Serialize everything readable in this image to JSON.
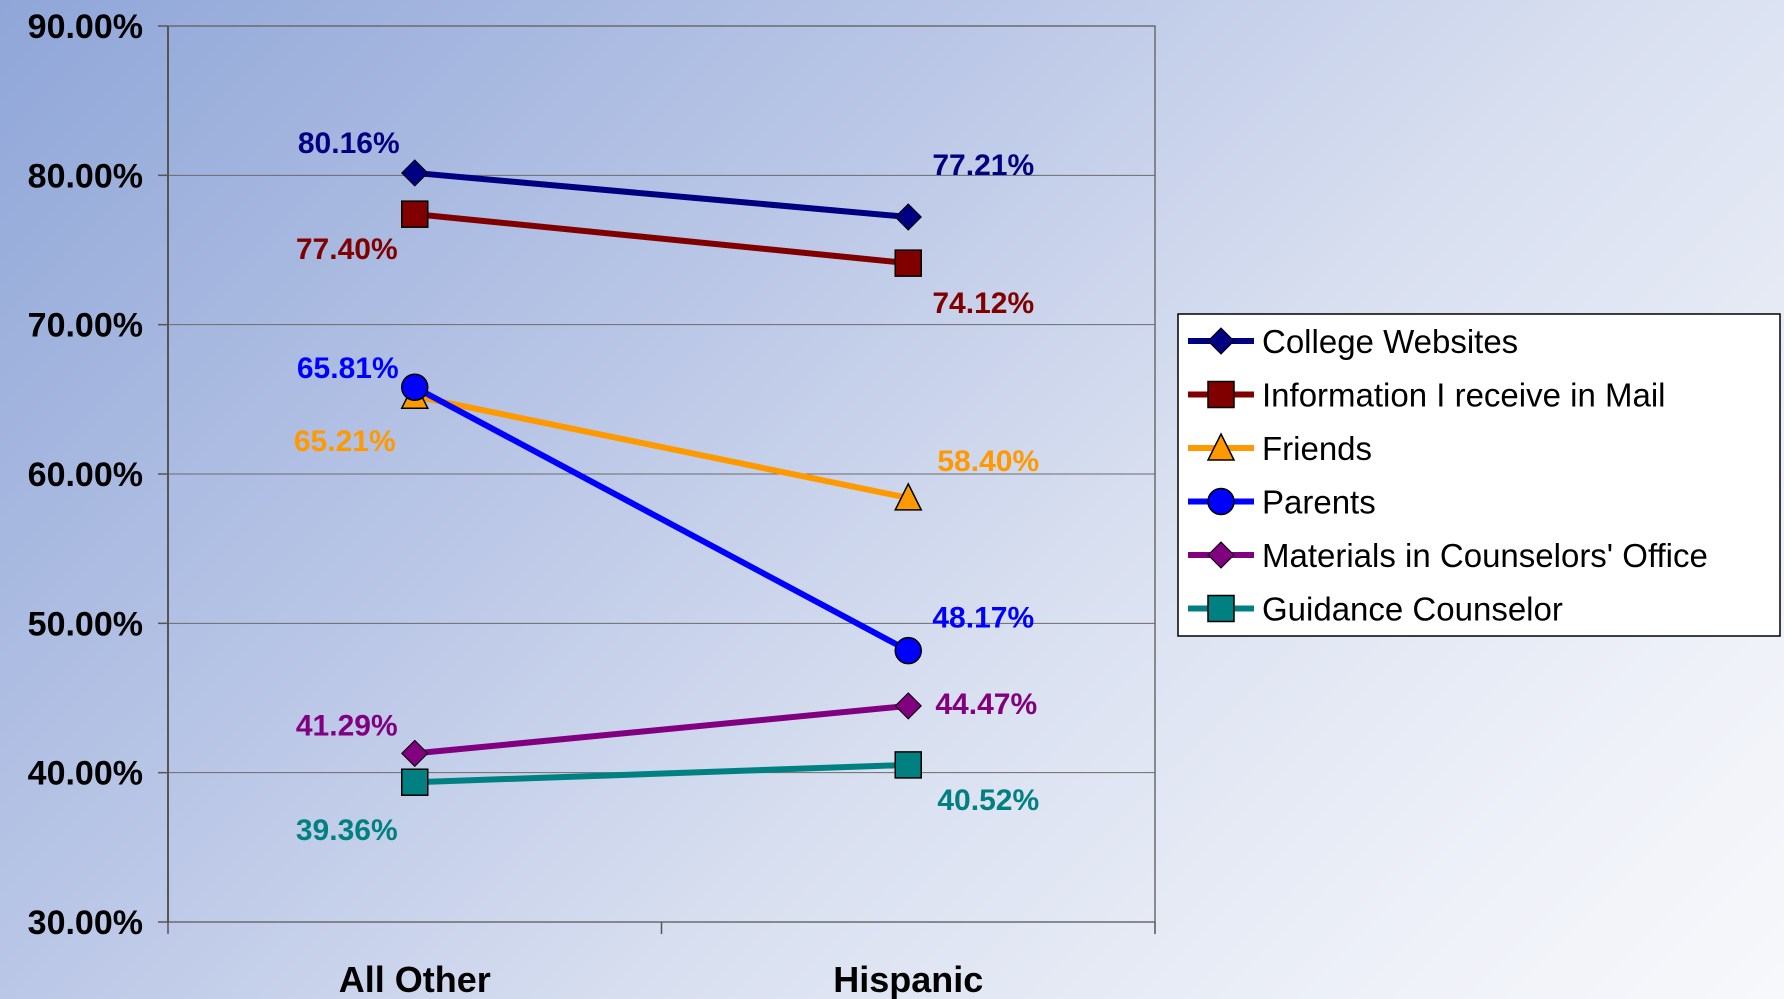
{
  "chart_data": {
    "type": "line",
    "categories": [
      "All Other",
      "Hispanic"
    ],
    "ylim": [
      0.3,
      0.9
    ],
    "yticks": [
      "30.00%",
      "40.00%",
      "50.00%",
      "60.00%",
      "70.00%",
      "80.00%",
      "90.00%"
    ],
    "grid": true,
    "legend_position": "right",
    "series": [
      {
        "name": "College Websites",
        "values": [
          0.8016,
          0.7721
        ],
        "labels": [
          "80.16%",
          "77.21%"
        ],
        "color": "#000080",
        "marker": "diamond"
      },
      {
        "name": "Information I receive in Mail",
        "values": [
          0.774,
          0.7412
        ],
        "labels": [
          "77.40%",
          "74.12%"
        ],
        "color": "#800000",
        "marker": "square"
      },
      {
        "name": "Friends",
        "values": [
          0.6521,
          0.584
        ],
        "labels": [
          "65.21%",
          "58.40%"
        ],
        "color": "#ff9900",
        "marker": "triangle"
      },
      {
        "name": "Parents",
        "values": [
          0.6581,
          0.4817
        ],
        "labels": [
          "65.81%",
          "48.17%"
        ],
        "color": "#0000ff",
        "marker": "circle"
      },
      {
        "name": "Materials in Counselors' Office",
        "values": [
          0.4129,
          0.4447
        ],
        "labels": [
          "41.29%",
          "44.47%"
        ],
        "color": "#800080",
        "marker": "diamond"
      },
      {
        "name": "Guidance Counselor",
        "values": [
          0.3936,
          0.4052
        ],
        "labels": [
          "39.36%",
          "40.52%"
        ],
        "color": "#008080",
        "marker": "square"
      }
    ]
  }
}
